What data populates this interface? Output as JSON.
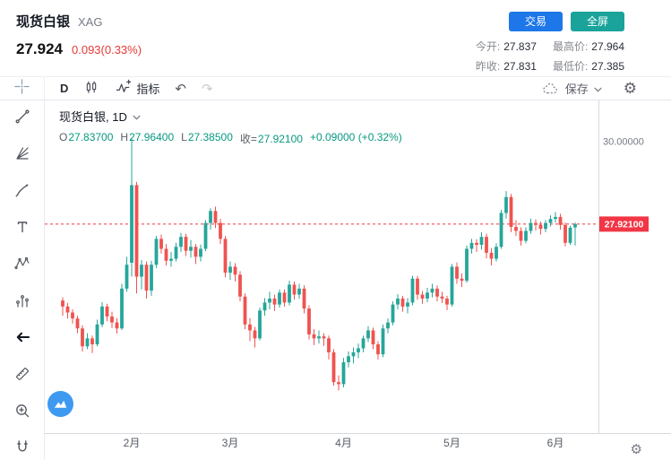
{
  "header": {
    "title": "现货白银",
    "symbol": "XAG",
    "price": "27.924",
    "change": "0.093(0.33%)",
    "trade_button": "交易",
    "fullscreen_button": "全屏",
    "stats": {
      "rows": [
        [
          {
            "label": "今开:",
            "value": "27.837"
          },
          {
            "label": "最高价:",
            "value": "27.964"
          }
        ],
        [
          {
            "label": "昨收:",
            "value": "27.831"
          },
          {
            "label": "最低价:",
            "value": "27.385"
          }
        ]
      ]
    }
  },
  "toolbar": {
    "interval": "D",
    "indicators": "指标",
    "undo": "↶",
    "redo": "↷",
    "save": "保存",
    "gear": "⚙"
  },
  "legend": {
    "series": "现货白银, 1D",
    "o_label": "O",
    "o": "27.83700",
    "h_label": "H",
    "h": "27.96400",
    "l_label": "L",
    "l": "27.38500",
    "c_label": "收=",
    "c": "27.92100",
    "change": "+0.09000 (+0.32%)"
  },
  "chart_data": {
    "type": "candlestick",
    "title": "现货白银 1D (spot silver, daily)",
    "ylim": [
      22.67,
      30.96
    ],
    "last_price": 27.921,
    "last_price_label": "27.92100",
    "y_axis_labels": [
      {
        "text": "30.00000",
        "value": 30.0
      }
    ],
    "x_ticks": [
      {
        "label": "2月",
        "index": 14
      },
      {
        "label": "3月",
        "index": 34
      },
      {
        "label": "4月",
        "index": 57
      },
      {
        "label": "5月",
        "index": 79
      },
      {
        "label": "6月",
        "index": 100
      }
    ],
    "colors": {
      "up": "#26a69a",
      "down": "#ef5350",
      "last_price": "#f23645"
    },
    "ohlc": [
      [
        26.0,
        26.08,
        25.62,
        25.85
      ],
      [
        25.85,
        25.94,
        25.55,
        25.7
      ],
      [
        25.7,
        25.78,
        25.42,
        25.55
      ],
      [
        25.55,
        25.62,
        25.18,
        25.3
      ],
      [
        25.3,
        25.38,
        24.72,
        24.85
      ],
      [
        24.85,
        25.18,
        24.78,
        25.05
      ],
      [
        25.05,
        25.12,
        24.68,
        24.9
      ],
      [
        24.9,
        25.52,
        24.85,
        25.4
      ],
      [
        25.4,
        25.96,
        25.33,
        25.85
      ],
      [
        25.85,
        25.92,
        25.48,
        25.6
      ],
      [
        25.6,
        25.72,
        25.31,
        25.45
      ],
      [
        25.45,
        25.56,
        25.17,
        25.3
      ],
      [
        25.3,
        26.42,
        25.26,
        26.3
      ],
      [
        26.3,
        27.1,
        26.22,
        26.9
      ],
      [
        26.95,
        30.07,
        26.6,
        28.9
      ],
      [
        28.9,
        28.98,
        26.18,
        26.6
      ],
      [
        26.6,
        27.02,
        26.28,
        26.9
      ],
      [
        26.9,
        26.98,
        26.05,
        26.25
      ],
      [
        26.25,
        27.0,
        26.12,
        26.9
      ],
      [
        26.9,
        27.62,
        26.82,
        27.55
      ],
      [
        27.55,
        27.66,
        27.18,
        27.3
      ],
      [
        27.3,
        27.42,
        26.88,
        27.0
      ],
      [
        27.0,
        27.22,
        26.85,
        27.05
      ],
      [
        27.05,
        27.45,
        26.98,
        27.35
      ],
      [
        27.35,
        27.7,
        27.22,
        27.6
      ],
      [
        27.6,
        27.68,
        27.12,
        27.25
      ],
      [
        27.25,
        27.52,
        27.08,
        27.35
      ],
      [
        27.35,
        27.42,
        26.92,
        27.1
      ],
      [
        27.1,
        27.41,
        26.98,
        27.3
      ],
      [
        27.3,
        28.02,
        27.24,
        27.95
      ],
      [
        27.95,
        28.32,
        27.78,
        28.25
      ],
      [
        28.25,
        28.36,
        27.82,
        27.95
      ],
      [
        27.95,
        28.05,
        27.42,
        27.55
      ],
      [
        27.55,
        27.62,
        26.58,
        26.7
      ],
      [
        26.7,
        26.98,
        26.52,
        26.85
      ],
      [
        26.85,
        26.94,
        26.48,
        26.65
      ],
      [
        26.65,
        26.74,
        25.98,
        26.1
      ],
      [
        26.1,
        26.18,
        25.28,
        25.4
      ],
      [
        25.4,
        25.56,
        24.98,
        25.25
      ],
      [
        25.25,
        25.34,
        24.82,
        25.05
      ],
      [
        25.05,
        25.82,
        25.0,
        25.75
      ],
      [
        25.75,
        26.06,
        25.62,
        25.95
      ],
      [
        25.95,
        26.22,
        25.78,
        26.05
      ],
      [
        26.05,
        26.15,
        25.74,
        25.9
      ],
      [
        25.9,
        26.28,
        25.82,
        26.2
      ],
      [
        26.2,
        26.28,
        25.85,
        25.95
      ],
      [
        25.95,
        26.5,
        25.88,
        26.4
      ],
      [
        26.4,
        26.48,
        26.02,
        26.15
      ],
      [
        26.15,
        26.42,
        26.04,
        26.3
      ],
      [
        26.3,
        26.38,
        25.68,
        25.8
      ],
      [
        25.8,
        25.88,
        25.02,
        25.15
      ],
      [
        25.15,
        25.28,
        24.88,
        25.05
      ],
      [
        25.05,
        25.25,
        24.92,
        25.1
      ],
      [
        25.1,
        25.18,
        24.86,
        25.05
      ],
      [
        25.05,
        25.12,
        24.52,
        24.7
      ],
      [
        24.7,
        24.78,
        23.86,
        23.95
      ],
      [
        23.95,
        24.12,
        23.74,
        23.9
      ],
      [
        23.9,
        24.56,
        23.82,
        24.45
      ],
      [
        24.45,
        24.72,
        24.32,
        24.6
      ],
      [
        24.6,
        24.82,
        24.42,
        24.7
      ],
      [
        24.7,
        24.92,
        24.55,
        24.8
      ],
      [
        24.8,
        25.12,
        24.7,
        25.05
      ],
      [
        25.05,
        25.36,
        24.96,
        25.25
      ],
      [
        25.25,
        25.32,
        24.78,
        24.9
      ],
      [
        24.9,
        24.98,
        24.52,
        24.65
      ],
      [
        24.65,
        25.4,
        24.58,
        25.3
      ],
      [
        25.3,
        25.55,
        25.18,
        25.45
      ],
      [
        25.45,
        25.98,
        25.38,
        25.9
      ],
      [
        25.9,
        26.16,
        25.78,
        26.05
      ],
      [
        26.05,
        26.12,
        25.72,
        25.85
      ],
      [
        25.85,
        26.06,
        25.68,
        25.95
      ],
      [
        25.95,
        26.62,
        25.88,
        26.55
      ],
      [
        26.55,
        26.62,
        26.02,
        26.15
      ],
      [
        26.15,
        26.24,
        25.92,
        26.05
      ],
      [
        26.05,
        26.32,
        25.96,
        26.2
      ],
      [
        26.2,
        26.42,
        26.08,
        26.3
      ],
      [
        26.3,
        26.38,
        25.98,
        26.1
      ],
      [
        26.1,
        26.22,
        25.94,
        26.05
      ],
      [
        26.05,
        26.12,
        25.76,
        25.9
      ],
      [
        25.9,
        26.92,
        25.85,
        26.85
      ],
      [
        26.85,
        26.96,
        26.42,
        26.55
      ],
      [
        26.55,
        26.68,
        26.34,
        26.5
      ],
      [
        26.5,
        27.38,
        26.45,
        27.3
      ],
      [
        27.3,
        27.55,
        27.18,
        27.45
      ],
      [
        27.45,
        27.54,
        27.22,
        27.4
      ],
      [
        27.4,
        27.72,
        27.28,
        27.6
      ],
      [
        27.6,
        27.68,
        27.06,
        27.2
      ],
      [
        27.2,
        27.32,
        26.88,
        27.05
      ],
      [
        27.05,
        27.44,
        26.98,
        27.35
      ],
      [
        27.35,
        28.28,
        27.3,
        28.2
      ],
      [
        28.2,
        28.75,
        28.06,
        28.6
      ],
      [
        28.6,
        28.68,
        27.72,
        27.85
      ],
      [
        27.85,
        28.02,
        27.62,
        27.75
      ],
      [
        27.75,
        27.84,
        27.38,
        27.5
      ],
      [
        27.5,
        27.84,
        27.44,
        27.75
      ],
      [
        27.75,
        28.06,
        27.68,
        27.95
      ],
      [
        27.95,
        28.04,
        27.76,
        27.9
      ],
      [
        27.9,
        27.98,
        27.66,
        27.8
      ],
      [
        27.8,
        28.02,
        27.72,
        27.95
      ],
      [
        27.95,
        28.14,
        27.86,
        28.05
      ],
      [
        28.05,
        28.22,
        27.96,
        28.1
      ],
      [
        28.1,
        28.18,
        27.78,
        27.9
      ],
      [
        27.9,
        27.96,
        27.36,
        27.45
      ],
      [
        27.45,
        27.88,
        27.4,
        27.831
      ],
      [
        27.837,
        27.964,
        27.385,
        27.921
      ]
    ]
  }
}
